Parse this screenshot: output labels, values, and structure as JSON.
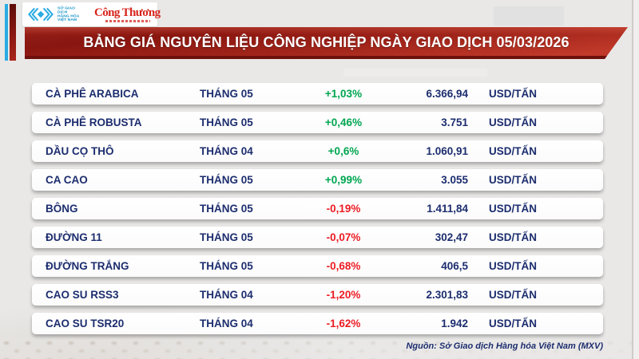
{
  "header": {
    "mxv_logo": {
      "icon": "nested-chevrons-diamond",
      "lines": [
        "SỞ GIAO DỊCH",
        "HÀNG HÓA",
        "VIỆT NAM"
      ]
    },
    "congthuong_logo": "Công Thương"
  },
  "banner": {
    "title": "BẢNG GIÁ NGUYÊN LIỆU CÔNG NGHIỆP NGÀY GIAO DỊCH 05/03/2026"
  },
  "table": {
    "rows": [
      {
        "name": "CÀ PHÊ ARABICA",
        "month": "THÁNG 05",
        "change": "+1,03%",
        "direction": "up",
        "price": "6.366,94",
        "unit": "USD/TẤN"
      },
      {
        "name": "CÀ PHÊ ROBUSTA",
        "month": "THÁNG 05",
        "change": "+0,46%",
        "direction": "up",
        "price": "3.751",
        "unit": "USD/TẤN"
      },
      {
        "name": "DẦU CỌ THÔ",
        "month": "THÁNG 04",
        "change": "+0,6%",
        "direction": "up",
        "price": "1.060,91",
        "unit": "USD/TẤN"
      },
      {
        "name": "CA CAO",
        "month": "THÁNG 05",
        "change": "+0,99%",
        "direction": "up",
        "price": "3.055",
        "unit": "USD/TẤN"
      },
      {
        "name": "BÔNG",
        "month": "THÁNG 05",
        "change": "-0,19%",
        "direction": "down",
        "price": "1.411,84",
        "unit": "USD/TẤN"
      },
      {
        "name": "ĐƯỜNG 11",
        "month": "THÁNG 05",
        "change": "-0,07%",
        "direction": "down",
        "price": "302,47",
        "unit": "USD/TẤN"
      },
      {
        "name": "ĐƯỜNG TRẮNG",
        "month": "THÁNG 05",
        "change": "-0,68%",
        "direction": "down",
        "price": "406,5",
        "unit": "USD/TẤN"
      },
      {
        "name": "CAO SU RSS3",
        "month": "THÁNG 04",
        "change": "-1,20%",
        "direction": "down",
        "price": "2.301,83",
        "unit": "USD/TẤN"
      },
      {
        "name": "CAO SU TSR20",
        "month": "THÁNG 04",
        "change": "-1,62%",
        "direction": "down",
        "price": "1.942",
        "unit": "USD/TẤN"
      }
    ]
  },
  "footer": {
    "source": "Nguồn: Sở Giao dịch Hàng hóa Việt Nam (MXV)"
  },
  "colors": {
    "up_green": "#00a651",
    "down_red": "#ec1c24",
    "text_navy": "#1c2d6e",
    "banner_red_dark": "#891610",
    "banner_red_bright": "#c23a2a",
    "accent_cyan": "#2aabe2",
    "background": "#e9e8e7"
  },
  "chart_data": {
    "type": "table",
    "title": "BẢNG GIÁ NGUYÊN LIỆU CÔNG NGHIỆP NGÀY GIAO DỊCH 05/03/2026",
    "columns": [
      "commodity",
      "contract_month",
      "percent_change",
      "price",
      "unit"
    ],
    "rows": [
      {
        "commodity": "CÀ PHÊ ARABICA",
        "contract_month": "THÁNG 05",
        "percent_change": 1.03,
        "price": 6366.94,
        "unit": "USD/TẤN"
      },
      {
        "commodity": "CÀ PHÊ ROBUSTA",
        "contract_month": "THÁNG 05",
        "percent_change": 0.46,
        "price": 3751,
        "unit": "USD/TẤN"
      },
      {
        "commodity": "DẦU CỌ THÔ",
        "contract_month": "THÁNG 04",
        "percent_change": 0.6,
        "price": 1060.91,
        "unit": "USD/TẤN"
      },
      {
        "commodity": "CA CAO",
        "contract_month": "THÁNG 05",
        "percent_change": 0.99,
        "price": 3055,
        "unit": "USD/TẤN"
      },
      {
        "commodity": "BÔNG",
        "contract_month": "THÁNG 05",
        "percent_change": -0.19,
        "price": 1411.84,
        "unit": "USD/TẤN"
      },
      {
        "commodity": "ĐƯỜNG 11",
        "contract_month": "THÁNG 05",
        "percent_change": -0.07,
        "price": 302.47,
        "unit": "USD/TẤN"
      },
      {
        "commodity": "ĐƯỜNG TRẮNG",
        "contract_month": "THÁNG 05",
        "percent_change": -0.68,
        "price": 406.5,
        "unit": "USD/TẤN"
      },
      {
        "commodity": "CAO SU RSS3",
        "contract_month": "THÁNG 04",
        "percent_change": -1.2,
        "price": 2301.83,
        "unit": "USD/TẤN"
      },
      {
        "commodity": "CAO SU TSR20",
        "contract_month": "THÁNG 04",
        "percent_change": -1.62,
        "price": 1942,
        "unit": "USD/TẤN"
      }
    ],
    "source_note": "Nguồn: Sở Giao dịch Hàng hóa Việt Nam (MXV)"
  }
}
